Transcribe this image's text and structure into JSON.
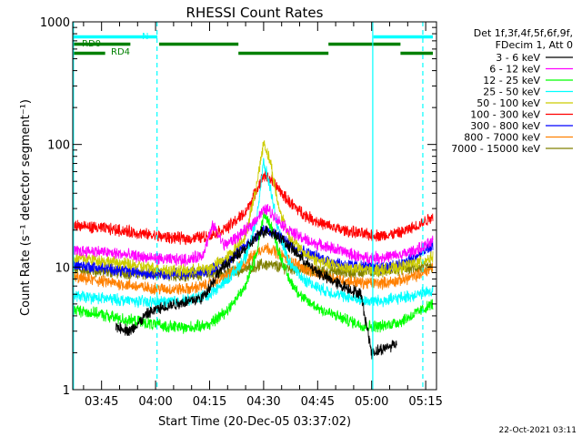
{
  "chart_data": {
    "type": "line",
    "title": "RHESSI Count Rates",
    "xlabel": "Start Time (20-Dec-05 03:37:02)",
    "ylabel": "Count Rate (s⁻¹ detector segment⁻¹)",
    "yscale": "log",
    "ylim": [
      1,
      1000
    ],
    "xlim_minutes": [
      217.0,
      318.0
    ],
    "xticks": [
      {
        "m": 225,
        "label": "03:45"
      },
      {
        "m": 240,
        "label": "04:00"
      },
      {
        "m": 255,
        "label": "04:15"
      },
      {
        "m": 270,
        "label": "04:30"
      },
      {
        "m": 285,
        "label": "04:45"
      },
      {
        "m": 300,
        "label": "05:00"
      },
      {
        "m": 315,
        "label": "05:15"
      }
    ],
    "yticks": [
      {
        "v": 1,
        "label": "1"
      },
      {
        "v": 10,
        "label": "10"
      },
      {
        "v": 100,
        "label": "100"
      },
      {
        "v": 1000,
        "label": "1000"
      }
    ],
    "grid": false,
    "legend_position": "right",
    "legend_header": [
      "Det 1f,3f,4f,5f,6f,9f,",
      "FDecim 1, Att 0"
    ],
    "series": [
      {
        "name": "3 - 6 keV",
        "color": "#000000",
        "start": 229,
        "end": 307,
        "x": [
          229,
          233,
          238,
          243,
          248,
          253,
          258,
          262,
          266,
          269,
          271,
          274,
          278,
          283,
          288,
          292,
          297,
          300,
          304,
          307
        ],
        "y": [
          3.3,
          3.0,
          4.2,
          4.8,
          5.2,
          5.6,
          9.5,
          12.0,
          15.0,
          19.0,
          20.0,
          18.0,
          14.0,
          10.0,
          8.0,
          7.0,
          6.0,
          2.0,
          2.2,
          2.4
        ]
      },
      {
        "name": "6 - 12 keV",
        "color": "#ff00ff",
        "start": 217,
        "end": 317,
        "x": [
          217,
          223,
          230,
          237,
          243,
          249,
          253,
          256,
          259,
          262,
          266,
          269,
          271,
          274,
          278,
          283,
          290,
          297,
          303,
          308,
          313,
          317
        ],
        "y": [
          13.5,
          13.5,
          12.8,
          12.0,
          11.5,
          11.5,
          12.5,
          22.0,
          15.0,
          17.0,
          21.0,
          27.0,
          30.0,
          24.0,
          19.0,
          16.0,
          14.0,
          12.0,
          12.0,
          12.5,
          14.0,
          16.0
        ]
      },
      {
        "name": "12 - 25 keV",
        "color": "#00ff00",
        "start": 217,
        "end": 317,
        "x": [
          217,
          223,
          230,
          237,
          243,
          249,
          255,
          260,
          265,
          268,
          270,
          272,
          274,
          277,
          281,
          286,
          292,
          298,
          303,
          308,
          313,
          317
        ],
        "y": [
          4.5,
          4.2,
          3.8,
          3.5,
          3.3,
          3.2,
          3.4,
          4.5,
          7.0,
          13.0,
          27.0,
          22.0,
          14.0,
          8.0,
          5.5,
          4.5,
          3.8,
          3.3,
          3.3,
          3.6,
          4.3,
          5.0
        ]
      },
      {
        "name": "25 - 50 keV",
        "color": "#00ffff",
        "start": 217,
        "end": 317,
        "x": [
          217,
          223,
          230,
          237,
          243,
          249,
          255,
          260,
          265,
          268,
          270,
          272,
          274,
          277,
          281,
          286,
          292,
          298,
          303,
          308,
          313,
          317
        ],
        "y": [
          5.8,
          5.6,
          5.4,
          5.2,
          5.2,
          5.4,
          6.0,
          7.8,
          12.0,
          24.0,
          72.0,
          42.0,
          20.0,
          11.0,
          8.0,
          6.6,
          5.8,
          5.3,
          5.3,
          5.6,
          6.0,
          6.4
        ]
      },
      {
        "name": "50 - 100 keV",
        "color": "#cccc00",
        "start": 217,
        "end": 317,
        "x": [
          217,
          223,
          230,
          237,
          243,
          249,
          255,
          260,
          265,
          268,
          270,
          272,
          274,
          277,
          281,
          286,
          292,
          298,
          303,
          308,
          313,
          317
        ],
        "y": [
          12.0,
          11.5,
          10.8,
          10.0,
          9.5,
          9.3,
          9.8,
          12.0,
          18.0,
          45.0,
          105.0,
          70.0,
          32.0,
          18.0,
          13.0,
          11.0,
          10.0,
          9.5,
          9.5,
          10.0,
          11.0,
          12.0
        ]
      },
      {
        "name": "100 - 300 keV",
        "color": "#ff0000",
        "start": 217,
        "end": 317,
        "x": [
          217,
          223,
          230,
          237,
          243,
          249,
          255,
          260,
          265,
          268,
          270,
          272,
          275,
          278,
          282,
          287,
          292,
          298,
          303,
          308,
          313,
          317
        ],
        "y": [
          22.0,
          21.0,
          20.0,
          18.5,
          17.5,
          17.0,
          18.0,
          21.0,
          28.0,
          42.0,
          56.0,
          52.0,
          40.0,
          32.0,
          26.0,
          22.0,
          20.0,
          18.5,
          18.0,
          19.0,
          22.0,
          26.0
        ]
      },
      {
        "name": "300 - 800 keV",
        "color": "#0000ff",
        "start": 217,
        "end": 317,
        "x": [
          217,
          223,
          230,
          237,
          243,
          249,
          255,
          260,
          265,
          268,
          270,
          272,
          275,
          278,
          282,
          287,
          292,
          298,
          303,
          308,
          313,
          317
        ],
        "y": [
          10.5,
          10.0,
          9.5,
          9.0,
          8.8,
          8.8,
          9.5,
          11.5,
          15.0,
          18.0,
          20.0,
          19.5,
          17.0,
          15.0,
          13.0,
          11.5,
          10.5,
          10.0,
          10.0,
          10.5,
          12.5,
          15.0
        ]
      },
      {
        "name": "800 - 7000 keV",
        "color": "#ff8000",
        "start": 217,
        "end": 317,
        "x": [
          217,
          223,
          230,
          237,
          243,
          249,
          255,
          260,
          265,
          268,
          270,
          272,
          275,
          278,
          282,
          287,
          292,
          298,
          303,
          308,
          313,
          317
        ],
        "y": [
          8.2,
          7.8,
          7.3,
          6.8,
          6.6,
          6.6,
          7.2,
          8.5,
          11.0,
          13.0,
          14.5,
          14.0,
          12.5,
          11.0,
          9.5,
          8.5,
          7.8,
          7.4,
          7.4,
          7.8,
          8.6,
          10.0
        ]
      },
      {
        "name": "7000 - 15000 keV",
        "color": "#808000",
        "start": 217,
        "end": 317,
        "x": [
          217,
          230,
          245,
          260,
          270,
          280,
          295,
          317
        ],
        "y": [
          9.5,
          9.0,
          8.5,
          9.0,
          10.5,
          9.5,
          9.0,
          10.0
        ]
      }
    ],
    "annotations": {
      "flags": [
        {
          "label": "N",
          "color": "#00ffff",
          "segments": [
            [
              217,
              240.5
            ],
            [
              300.5,
              317
            ]
          ]
        },
        {
          "label": "RD0",
          "color": "#008000",
          "segments": [
            [
              217,
              233
            ],
            [
              241,
              263
            ],
            [
              288,
              308
            ]
          ]
        },
        {
          "label": "RD4",
          "color": "#008000",
          "segments": [
            [
              217,
              226
            ],
            [
              263,
              288
            ],
            [
              308,
              317
            ]
          ]
        }
      ],
      "solid_vlines": [
        217.2,
        300.3
      ],
      "dashed_vlines": [
        240.4,
        314.2
      ]
    },
    "footer_date": "22-Oct-2021 03:11"
  }
}
